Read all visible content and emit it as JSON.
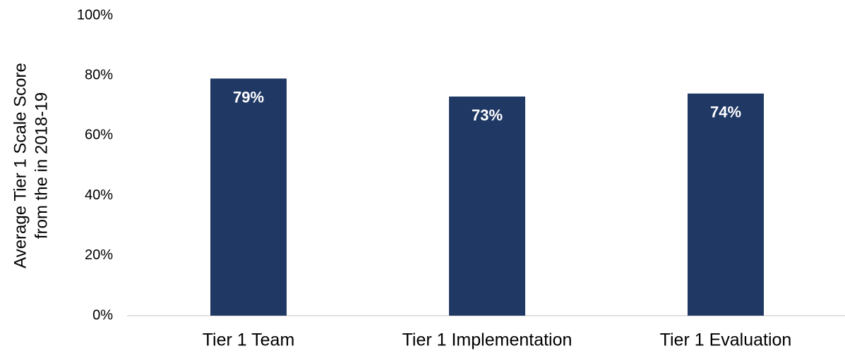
{
  "chart_data": {
    "type": "bar",
    "ylabel": [
      "Average Tier 1 Scale Score",
      "from the in 2018-19"
    ],
    "categories": [
      "Tier 1 Team",
      "Tier 1 Implementation",
      "Tier 1 Evaluation"
    ],
    "values": [
      79,
      73,
      74
    ],
    "value_labels": [
      "79%",
      "73%",
      "74%"
    ],
    "color": "#203864",
    "ylim": [
      0,
      100
    ],
    "yticks": [
      {
        "value": 0,
        "label": "0%"
      },
      {
        "value": 20,
        "label": "20%"
      },
      {
        "value": 40,
        "label": "40%"
      },
      {
        "value": 60,
        "label": "60%"
      },
      {
        "value": 80,
        "label": "80%"
      },
      {
        "value": 100,
        "label": "100%"
      }
    ],
    "grid": false
  }
}
